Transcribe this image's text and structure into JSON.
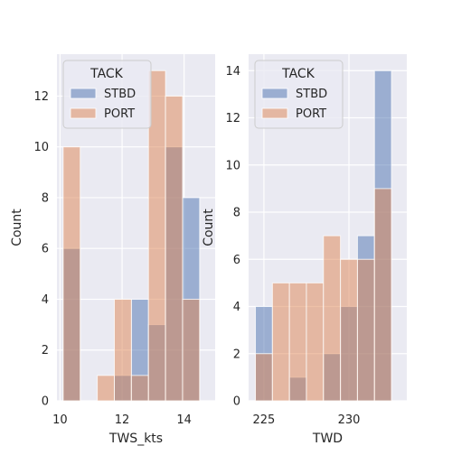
{
  "chart_data": [
    {
      "type": "bar",
      "xlabel": "TWS_kts",
      "ylabel": "Count",
      "xlim": [
        9.9,
        15.0
      ],
      "ylim": [
        0,
        13.65
      ],
      "xticks": [
        10,
        12,
        14
      ],
      "yticks": [
        0,
        2,
        4,
        6,
        8,
        10,
        12
      ],
      "grid": true,
      "legend": {
        "title": "TACK",
        "placement": "top-left"
      },
      "series": [
        {
          "name": "STBD",
          "color": "#4c72b0",
          "bins": [
            [
              10.1,
              10.65,
              6
            ],
            [
              11.2,
              11.75,
              0
            ],
            [
              11.75,
              12.3,
              1
            ],
            [
              12.3,
              12.85,
              4
            ],
            [
              12.85,
              13.4,
              3
            ],
            [
              13.4,
              13.95,
              10
            ],
            [
              13.95,
              14.5,
              8
            ]
          ]
        },
        {
          "name": "PORT",
          "color": "#dd8452",
          "bins": [
            [
              10.1,
              10.65,
              10
            ],
            [
              11.2,
              11.75,
              1
            ],
            [
              11.75,
              12.3,
              4
            ],
            [
              12.3,
              12.85,
              1
            ],
            [
              12.85,
              13.4,
              13
            ],
            [
              13.4,
              13.95,
              12
            ],
            [
              13.95,
              14.5,
              4
            ]
          ]
        }
      ]
    },
    {
      "type": "bar",
      "xlabel": "TWD",
      "ylabel": "Count",
      "xlim": [
        224.1,
        233.4
      ],
      "ylim": [
        0,
        14.7
      ],
      "xticks": [
        225,
        230
      ],
      "yticks": [
        0,
        2,
        4,
        6,
        8,
        10,
        12,
        14
      ],
      "grid": true,
      "legend": {
        "title": "TACK",
        "placement": "top-left"
      },
      "series": [
        {
          "name": "STBD",
          "color": "#4c72b0",
          "bins": [
            [
              224.5,
              225.5,
              4
            ],
            [
              225.5,
              226.5,
              0
            ],
            [
              226.5,
              227.5,
              1
            ],
            [
              227.5,
              228.5,
              0
            ],
            [
              228.5,
              229.5,
              2
            ],
            [
              229.5,
              230.5,
              4
            ],
            [
              230.5,
              231.5,
              7
            ],
            [
              231.5,
              232.5,
              14
            ]
          ]
        },
        {
          "name": "PORT",
          "color": "#dd8452",
          "bins": [
            [
              224.5,
              225.5,
              2
            ],
            [
              225.5,
              226.5,
              5
            ],
            [
              226.5,
              227.5,
              5
            ],
            [
              227.5,
              228.5,
              5
            ],
            [
              228.5,
              229.5,
              7
            ],
            [
              229.5,
              230.5,
              6
            ],
            [
              230.5,
              231.5,
              6
            ],
            [
              231.5,
              232.5,
              9
            ]
          ]
        }
      ]
    }
  ]
}
